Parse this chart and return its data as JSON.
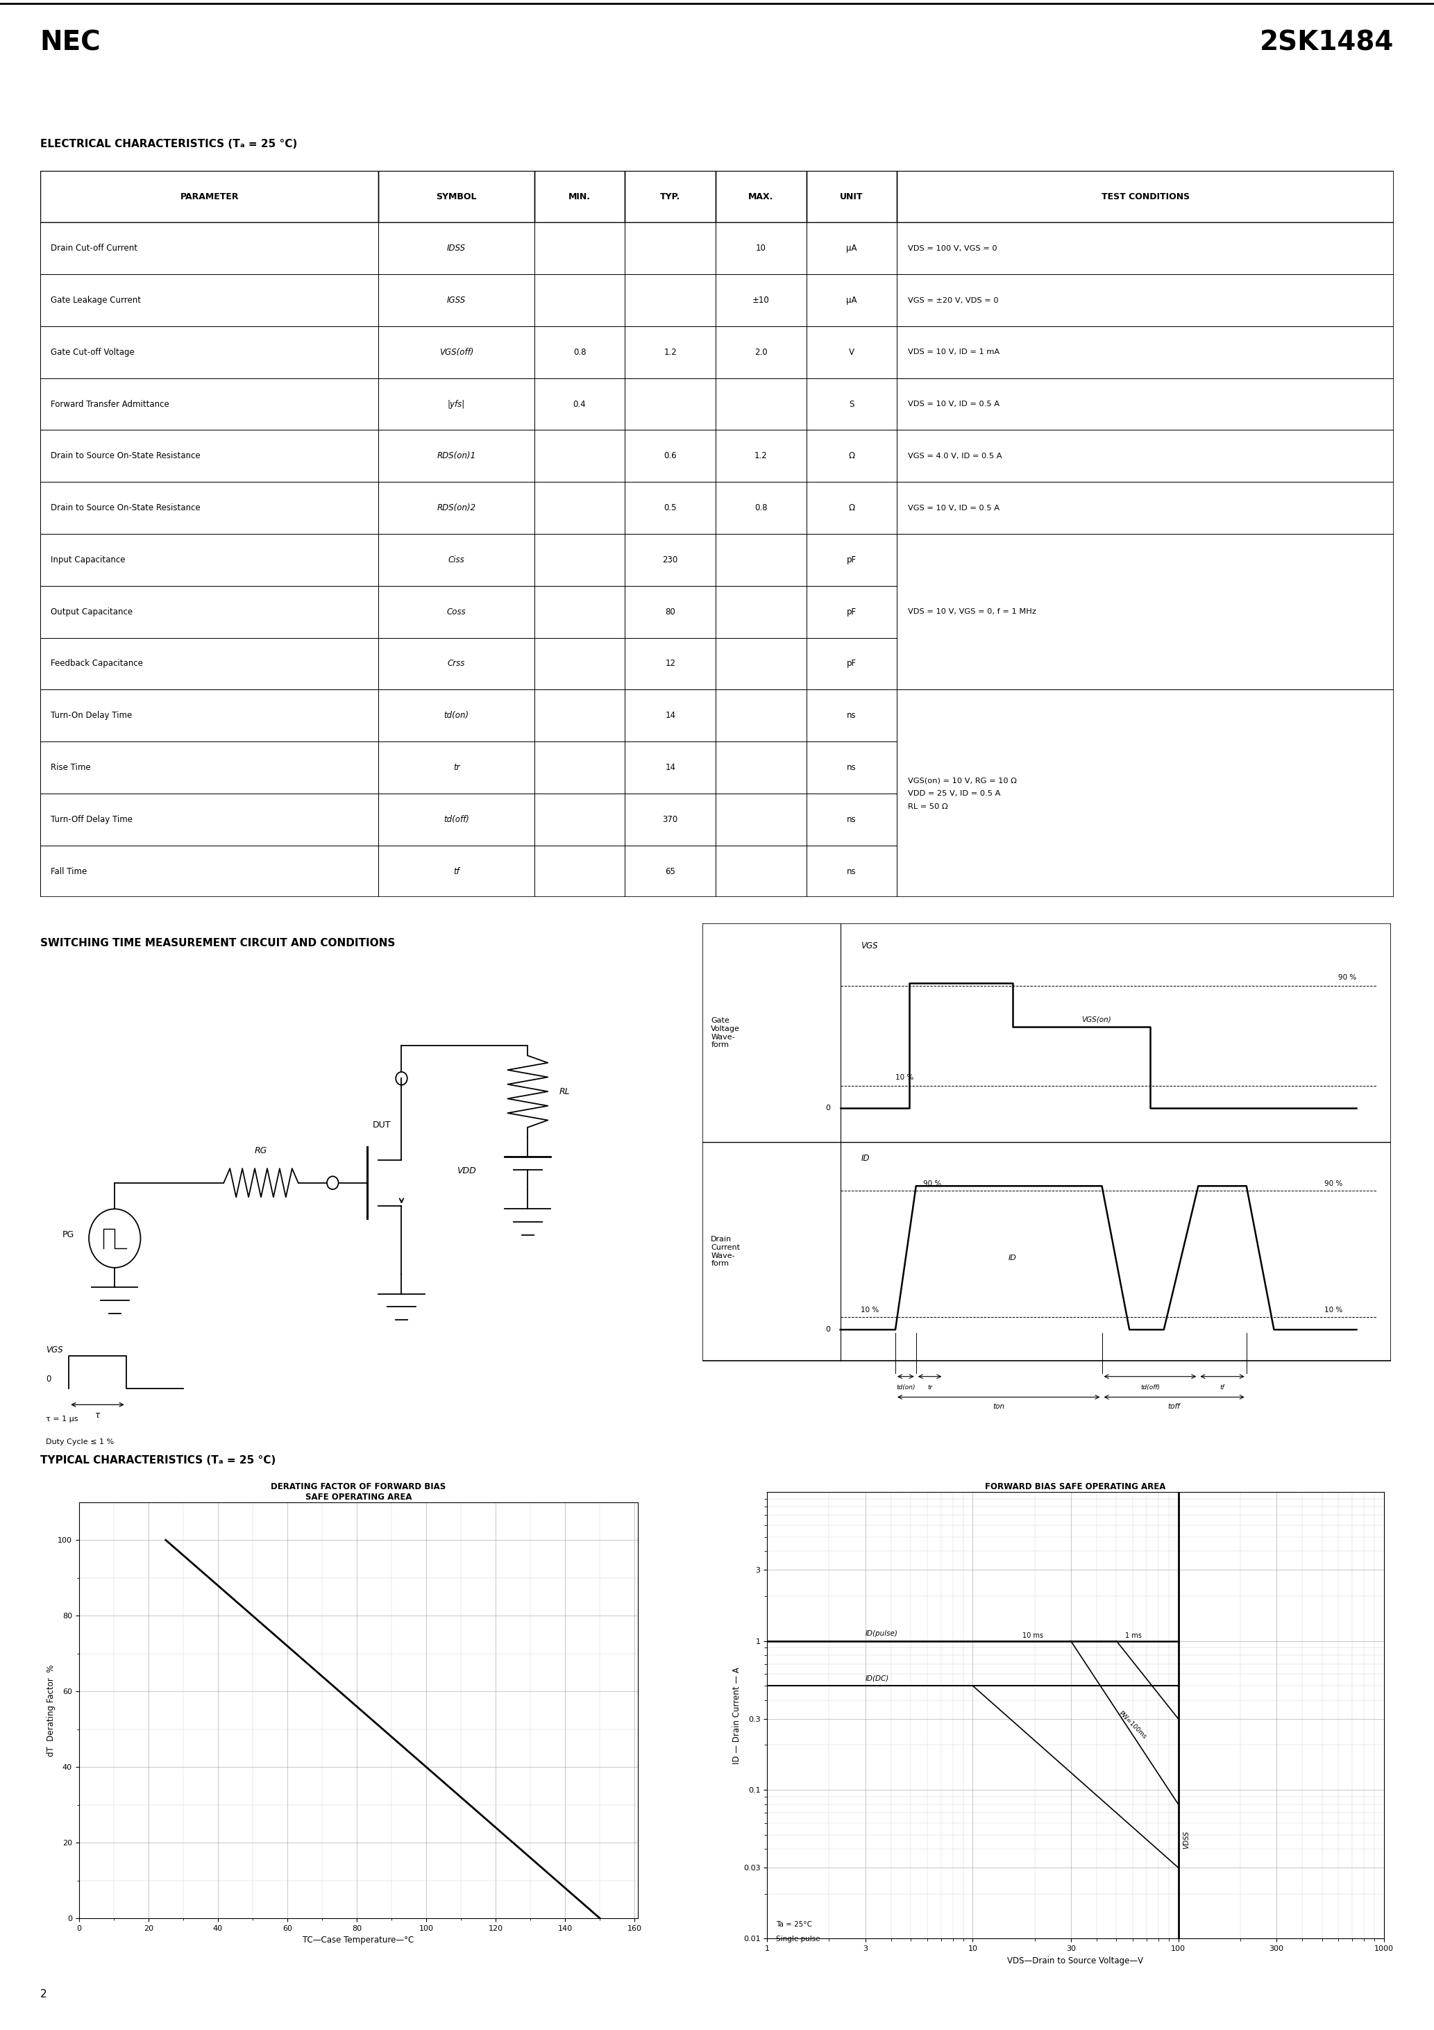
{
  "title_left": "NEC",
  "title_right": "2SK1484",
  "section1_title": "ELECTRICAL CHARACTERISTICS (Tₐ = 25 °C)",
  "table_headers": [
    "PARAMETER",
    "SYMBOL",
    "MIN.",
    "TYP.",
    "MAX.",
    "UNIT",
    "TEST CONDITIONS"
  ],
  "table_rows": [
    [
      "Drain Cut-off Current",
      "IDSS",
      "",
      "",
      "10",
      "μA",
      "VDS = 100 V, VGS = 0"
    ],
    [
      "Gate Leakage Current",
      "IGSS",
      "",
      "",
      "±10",
      "μA",
      "VGS = ±20 V, VDS = 0"
    ],
    [
      "Gate Cut-off Voltage",
      "VGS(off)",
      "0.8",
      "1.2",
      "2.0",
      "V",
      "VDS = 10 V, ID = 1 mA"
    ],
    [
      "Forward Transfer Admittance",
      "|yfs|",
      "0.4",
      "",
      "",
      "S",
      "VDS = 10 V, ID = 0.5 A"
    ],
    [
      "Drain to Source On-State Resistance",
      "RDS(on)1",
      "",
      "0.6",
      "1.2",
      "Ω",
      "VGS = 4.0 V, ID = 0.5 A"
    ],
    [
      "Drain to Source On-State Resistance",
      "RDS(on)2",
      "",
      "0.5",
      "0.8",
      "Ω",
      "VGS = 10 V, ID = 0.5 A"
    ],
    [
      "Input Capacitance",
      "Ciss",
      "",
      "230",
      "",
      "pF",
      ""
    ],
    [
      "Output Capacitance",
      "Coss",
      "",
      "80",
      "",
      "pF",
      "VDS = 10 V, VGS = 0, f = 1 MHz"
    ],
    [
      "Feedback Capacitance",
      "Crss",
      "",
      "12",
      "",
      "pF",
      ""
    ],
    [
      "Turn-On Delay Time",
      "td(on)",
      "",
      "14",
      "",
      "ns",
      ""
    ],
    [
      "Rise Time",
      "tr",
      "",
      "14",
      "",
      "ns",
      "VGS(on) = 10 V, RG = 10 Ω"
    ],
    [
      "Turn-Off Delay Time",
      "td(off)",
      "",
      "370",
      "",
      "ns",
      "VDD = 25 V, ID = 0.5 A"
    ],
    [
      "Fall Time",
      "tf",
      "",
      "65",
      "",
      "ns",
      "RL = 50 Ω"
    ]
  ],
  "section2_title": "SWITCHING TIME MEASUREMENT CIRCUIT AND CONDITIONS",
  "section3_title": "TYPICAL CHARACTERISTICS (Tₐ = 25 °C)",
  "graph1_title": "DERATING FACTOR OF FORWARD BIAS\nSAFE OPERATING AREA",
  "graph1_xlabel": "TC—Case Temperature—°C",
  "graph1_ylabel": "dT  Derating Factor  %",
  "graph2_title": "FORWARD BIAS SAFE OPERATING AREA",
  "graph2_xlabel": "VDS—Drain to Source Voltage—V",
  "graph2_ylabel": "ID — Drain Current — A",
  "page_number": "2"
}
